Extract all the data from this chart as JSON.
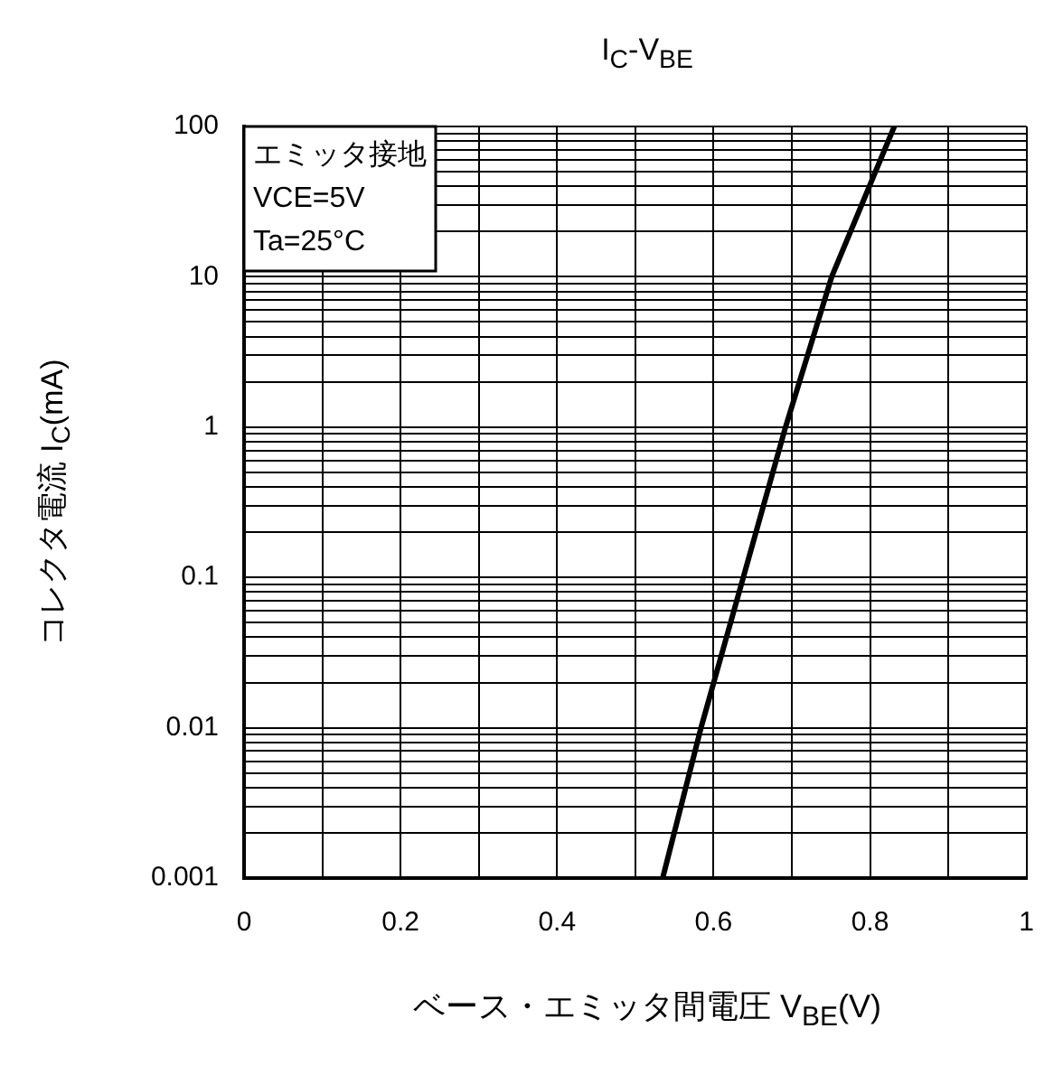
{
  "chart_data": {
    "type": "line",
    "title": "I$_{C}$-V$_{BE}$",
    "xlabel": "ベース・エミッタ間電圧 V$_{BE}$(V)",
    "ylabel": "コレクタ電流 I$_{C}$(mA)",
    "annotations": [
      "エミッタ接地",
      "VCE=5V",
      "Ta=25°C"
    ],
    "x": [
      0.535,
      0.584,
      0.638,
      0.692,
      0.751,
      0.831
    ],
    "series": [
      {
        "color": "#000000",
        "values": [
          0.001,
          0.01,
          0.1,
          1,
          10,
          100
        ]
      }
    ],
    "log": "y",
    "grid": true,
    "marker": "none",
    "line_style": "solid",
    "legend": false,
    "xlim": [
      0,
      1
    ],
    "xticks": [
      0,
      {
        "value": 0.1,
        "label": null
      },
      0.2,
      {
        "value": 0.3,
        "label": null
      },
      0.4,
      {
        "value": 0.5,
        "label": null
      },
      0.6,
      {
        "value": 0.7,
        "label": null
      },
      0.8,
      {
        "value": 0.9,
        "label": null
      },
      1
    ],
    "ylim": [
      0.001,
      100
    ],
    "yticks": [
      0.001,
      {
        "value": 0.002,
        "label": null
      },
      {
        "value": 0.003,
        "label": null
      },
      {
        "value": 0.004,
        "label": null
      },
      {
        "value": 0.005,
        "label": null
      },
      {
        "value": 0.006,
        "label": null
      },
      {
        "value": 0.007,
        "label": null
      },
      {
        "value": 0.008,
        "label": null
      },
      {
        "value": 0.009,
        "label": null
      },
      0.01,
      {
        "value": 0.02,
        "label": null
      },
      {
        "value": 0.03,
        "label": null
      },
      {
        "value": 0.04,
        "label": null
      },
      {
        "value": 0.05,
        "label": null
      },
      {
        "value": 0.06,
        "label": null
      },
      {
        "value": 0.07,
        "label": null
      },
      {
        "value": 0.08,
        "label": null
      },
      {
        "value": 0.09,
        "label": null
      },
      0.1,
      {
        "value": 0.2,
        "label": null
      },
      {
        "value": 0.3,
        "label": null
      },
      {
        "value": 0.4,
        "label": null
      },
      {
        "value": 0.5,
        "label": null
      },
      {
        "value": 0.6,
        "label": null
      },
      {
        "value": 0.7,
        "label": null
      },
      {
        "value": 0.8,
        "label": null
      },
      {
        "value": 0.9,
        "label": null
      },
      1,
      {
        "value": 2,
        "label": null
      },
      {
        "value": 3,
        "label": null
      },
      {
        "value": 4,
        "label": null
      },
      {
        "value": 5,
        "label": null
      },
      {
        "value": 6,
        "label": null
      },
      {
        "value": 7,
        "label": null
      },
      {
        "value": 8,
        "label": null
      },
      {
        "value": 9,
        "label": null
      },
      10,
      {
        "value": 20,
        "label": null
      },
      {
        "value": 30,
        "label": null
      },
      {
        "value": 40,
        "label": null
      },
      {
        "value": 50,
        "label": null
      },
      {
        "value": 60,
        "label": null
      },
      {
        "value": 70,
        "label": null
      },
      {
        "value": 80,
        "label": null
      },
      {
        "value": 90,
        "label": null
      },
      100
    ]
  }
}
